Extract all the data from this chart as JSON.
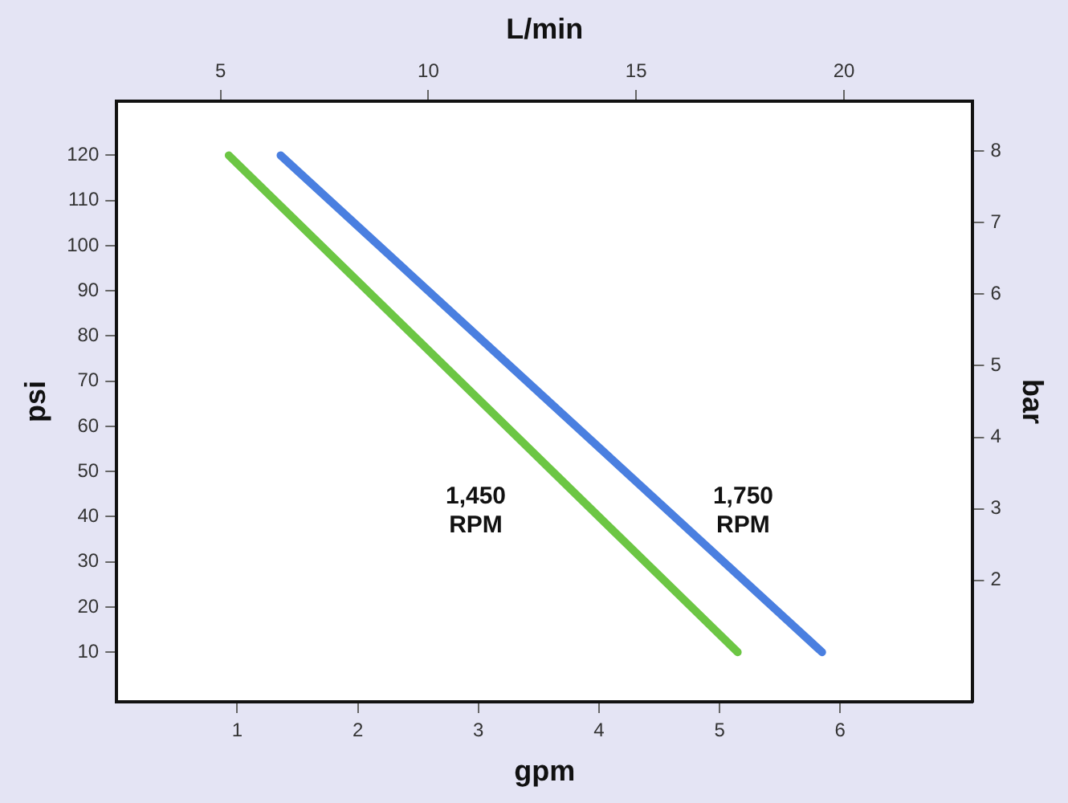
{
  "chart_data": {
    "type": "line",
    "xlabel": "gpm",
    "ylabel": "psi",
    "y2label": "bar",
    "x2label": "L/min",
    "xlim": [
      0,
      7.1
    ],
    "xticks": [
      1,
      2,
      3,
      4,
      5,
      6
    ],
    "x2lim": [
      2.5,
      23.1
    ],
    "x2ticks": [
      5,
      10,
      15,
      20
    ],
    "ylim": [
      -1,
      132
    ],
    "yticks": [
      10,
      20,
      30,
      40,
      50,
      60,
      70,
      80,
      90,
      100,
      110,
      120
    ],
    "y2lim": [
      0.3,
      8.7
    ],
    "y2ticks": [
      2,
      3,
      4,
      5,
      6,
      7,
      8
    ],
    "grid": false,
    "legend": false,
    "marker": "none",
    "line_style": "solid",
    "series": [
      {
        "name": "1,450 RPM",
        "color": "#6cc644",
        "x": [
          0.93,
          5.15
        ],
        "values": [
          120,
          10
        ]
      },
      {
        "name": "1,750 RPM",
        "color": "#4a7fe0",
        "x": [
          1.36,
          5.85
        ],
        "values": [
          120,
          10
        ]
      }
    ]
  }
}
